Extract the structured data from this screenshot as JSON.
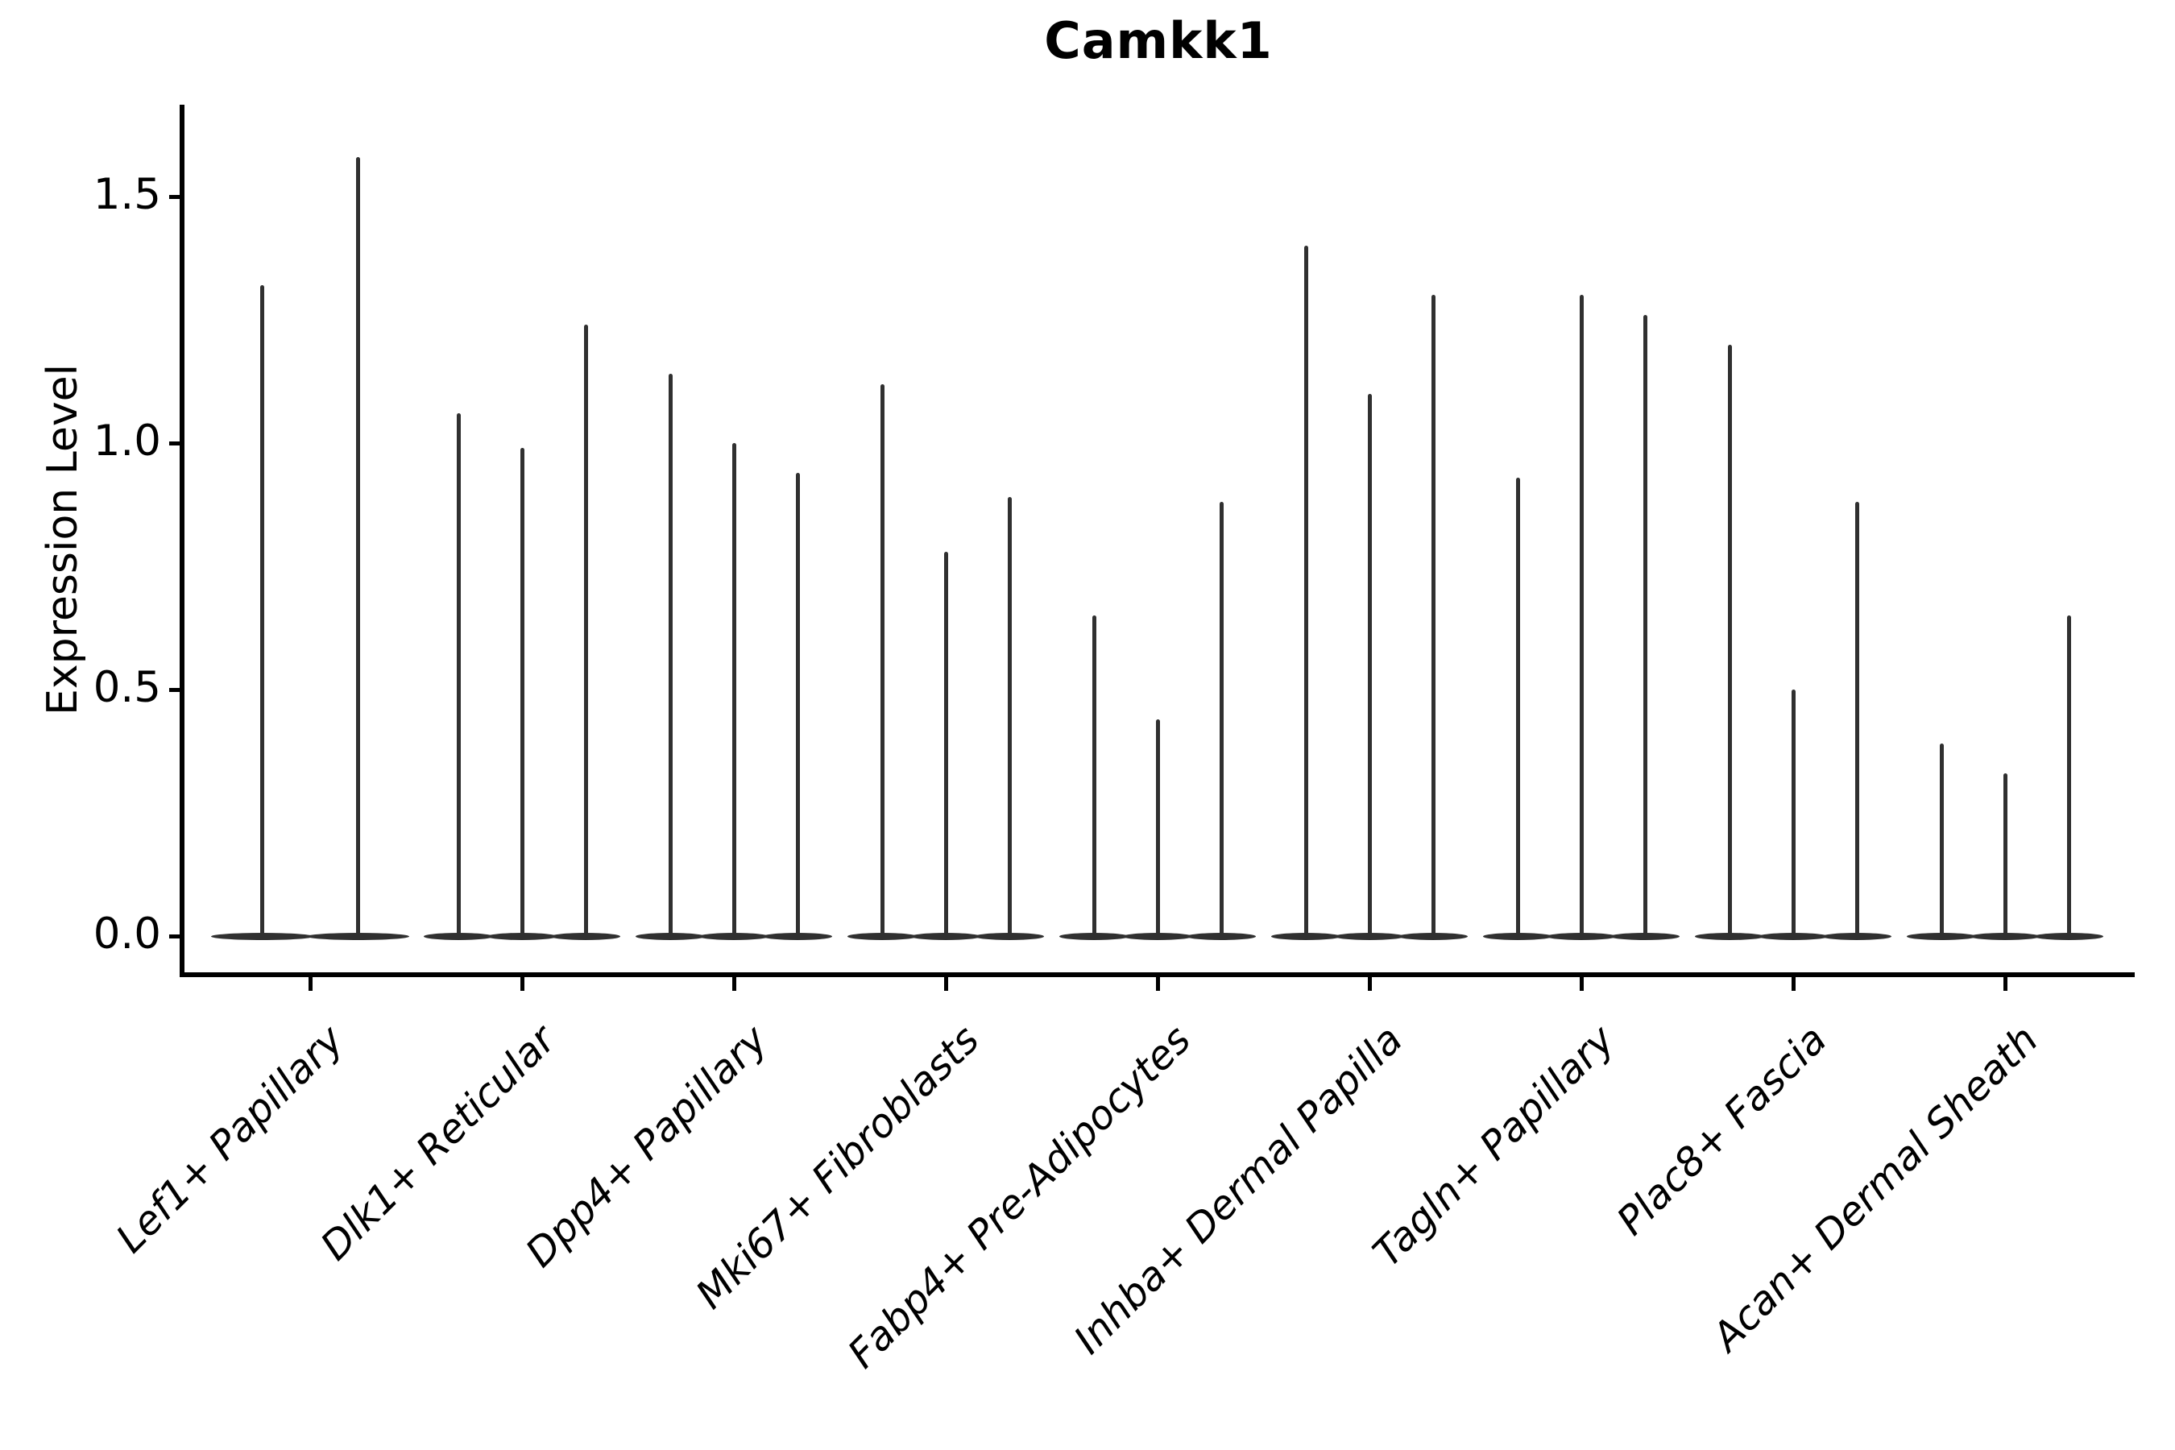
{
  "title": "Camkk1",
  "ylabel": "Expression Level",
  "chart_data": {
    "type": "violin",
    "title": "Camkk1",
    "xlabel": "",
    "ylabel": "Expression Level",
    "ylim": [
      -0.08,
      1.68
    ],
    "yticks": [
      0.0,
      0.5,
      1.0,
      1.5
    ],
    "ytick_labels": [
      "0.0",
      "0.5",
      "1.0",
      "1.5"
    ],
    "grid": false,
    "legend": "none",
    "categories": [
      "Lef1+ Papillary",
      "Dlk1+ Reticular",
      "Dpp4+ Papillary",
      "Mki67+ Fibroblasts",
      "Fabp4+ Pre-Adipocytes",
      "Inhba+ Dermal Papilla",
      "Tagln+ Papillary",
      "Plac8+ Fascia",
      "Acan+ Dermal Sheath"
    ],
    "groups": [
      {
        "label": "Lef1+ Papillary",
        "violin_max_values": [
          1.32,
          1.58
        ]
      },
      {
        "label": "Dlk1+ Reticular",
        "violin_max_values": [
          1.06,
          0.99,
          1.24
        ]
      },
      {
        "label": "Dpp4+ Papillary",
        "violin_max_values": [
          1.14,
          1.0,
          0.94
        ]
      },
      {
        "label": "Mki67+ Fibroblasts",
        "violin_max_values": [
          1.12,
          0.78,
          0.89
        ]
      },
      {
        "label": "Fabp4+ Pre-Adipocytes",
        "violin_max_values": [
          0.65,
          0.44,
          0.88
        ]
      },
      {
        "label": "Inhba+ Dermal Papilla",
        "violin_max_values": [
          1.4,
          1.1,
          1.3
        ]
      },
      {
        "label": "Tagln+ Papillary",
        "violin_max_values": [
          0.93,
          1.3,
          1.26
        ]
      },
      {
        "label": "Plac8+ Fascia",
        "violin_max_values": [
          1.2,
          0.5,
          0.88
        ]
      },
      {
        "label": "Acan+ Dermal Sheath",
        "violin_max_values": [
          0.39,
          0.33,
          0.65
        ]
      }
    ],
    "style_notes": "zero-inflated violins: wide flat body at y=0 with a thin vertical spike up to the max expression value",
    "colors": {
      "violin": "#303030",
      "axis": "#000000",
      "text": "#000000"
    }
  }
}
